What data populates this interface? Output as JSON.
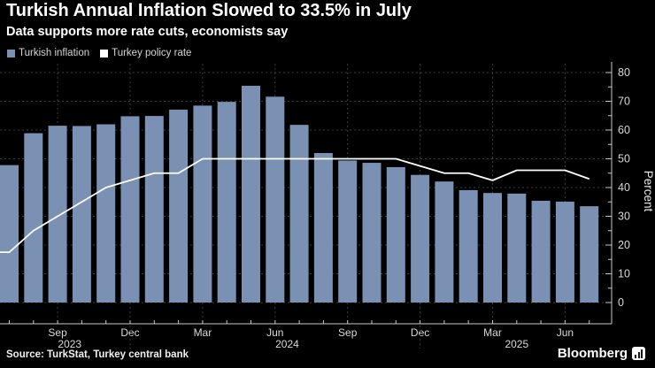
{
  "header": {
    "title": "Turkish Annual Inflation Slowed to 33.5% in July",
    "subtitle": "Data supports more rate cuts, economists say"
  },
  "legend": {
    "items": [
      {
        "label": "Turkish inflation",
        "color": "#7A91B4",
        "marker": "square"
      },
      {
        "label": "Turkey policy rate",
        "color": "#FFFFFF",
        "marker": "square"
      }
    ]
  },
  "chart_data": {
    "type": "bar",
    "title": "Turkish Annual Inflation Slowed to 33.5% in July",
    "x": [
      "Jul 2023",
      "Aug 2023",
      "Sep 2023",
      "Oct 2023",
      "Nov 2023",
      "Dec 2023",
      "Jan 2024",
      "Feb 2024",
      "Mar 2024",
      "Apr 2024",
      "May 2024",
      "Jun 2024",
      "Jul 2024",
      "Aug 2024",
      "Sep 2024",
      "Oct 2024",
      "Nov 2024",
      "Dec 2024",
      "Jan 2025",
      "Feb 2025",
      "Mar 2025",
      "Apr 2025",
      "May 2025",
      "Jun 2025",
      "Jul 2025"
    ],
    "series": [
      {
        "name": "Turkish inflation",
        "type": "bar",
        "color": "#7A91B4",
        "values": [
          47.8,
          58.9,
          61.5,
          61.4,
          62.0,
          64.8,
          64.9,
          67.1,
          68.5,
          69.8,
          75.4,
          71.6,
          61.8,
          52.0,
          49.4,
          48.6,
          47.1,
          44.4,
          42.1,
          39.1,
          38.1,
          37.9,
          35.4,
          35.1,
          33.5
        ]
      },
      {
        "name": "Turkey policy rate",
        "type": "line",
        "color": "#FFFFFF",
        "values": [
          17.5,
          25,
          30,
          35,
          40,
          42.5,
          45,
          45,
          50,
          50,
          50,
          50,
          50,
          50,
          50,
          50,
          50,
          47.5,
          45,
          45,
          42.5,
          46,
          46,
          46,
          43
        ]
      }
    ],
    "ylabel": "Percent",
    "ylim": [
      0,
      80
    ],
    "yticks": [
      0,
      10,
      20,
      30,
      40,
      50,
      60,
      70,
      80
    ],
    "y_minor_tick_step": 5,
    "xtick_months": [
      "Mar",
      "Jun",
      "Sep",
      "Dec"
    ],
    "year_labels": [
      "2023",
      "2024",
      "2025"
    ],
    "axis_side": "right",
    "grid": {
      "horizontal": "dashed",
      "vertical": "dashed-at-labeled-months"
    },
    "legend_position": "top-left"
  },
  "footer": {
    "source": "Source: TurkStat, Turkey central bank",
    "brand": "Bloomberg"
  },
  "colors": {
    "background": "#000000",
    "bar": "#7A91B4",
    "line": "#FFFFFF",
    "grid": "#3D3D3D",
    "axis": "#C9C9C9",
    "tick_text": "#D9D9D9",
    "title_text": "#FFFFFF"
  }
}
